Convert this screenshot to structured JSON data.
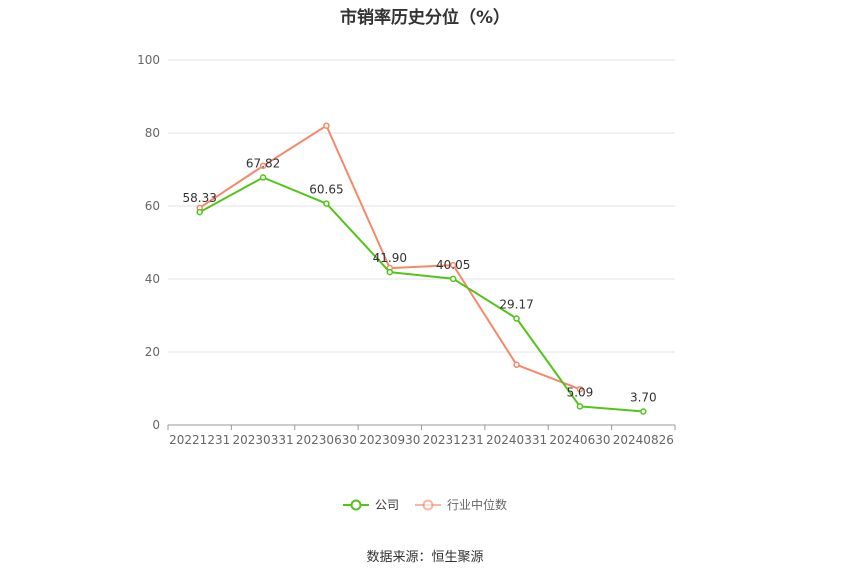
{
  "title": "市销率历史分位（%）",
  "source": "数据来源：恒生聚源",
  "colors": {
    "company": "#52c41a",
    "industry": "#f4896b",
    "grid": "#e0e3ea",
    "axis": "#999999"
  },
  "legend": {
    "company": "公司",
    "industry": "行业中位数"
  },
  "chart_data": {
    "type": "line",
    "title": "市销率历史分位（%）",
    "xlabel": "",
    "ylabel": "",
    "categories": [
      "20221231",
      "20230331",
      "20230630",
      "20230930",
      "20231231",
      "20240331",
      "20240630",
      "20240826"
    ],
    "ylim": [
      0,
      100
    ],
    "yticks": [
      0,
      20,
      40,
      60,
      80,
      100
    ],
    "grid": true,
    "legend_position": "bottom",
    "series": [
      {
        "name": "公司",
        "key": "company",
        "values": [
          58.33,
          67.82,
          60.65,
          41.9,
          40.05,
          29.17,
          5.09,
          3.7
        ],
        "labels": [
          "58.33",
          "67.82",
          "60.65",
          "41.90",
          "40.05",
          "29.17",
          "5.09",
          "3.70"
        ]
      },
      {
        "name": "行业中位数",
        "key": "industry",
        "values": [
          59.5,
          71.0,
          82.0,
          43.0,
          43.8,
          16.5,
          9.8,
          null
        ]
      }
    ]
  }
}
